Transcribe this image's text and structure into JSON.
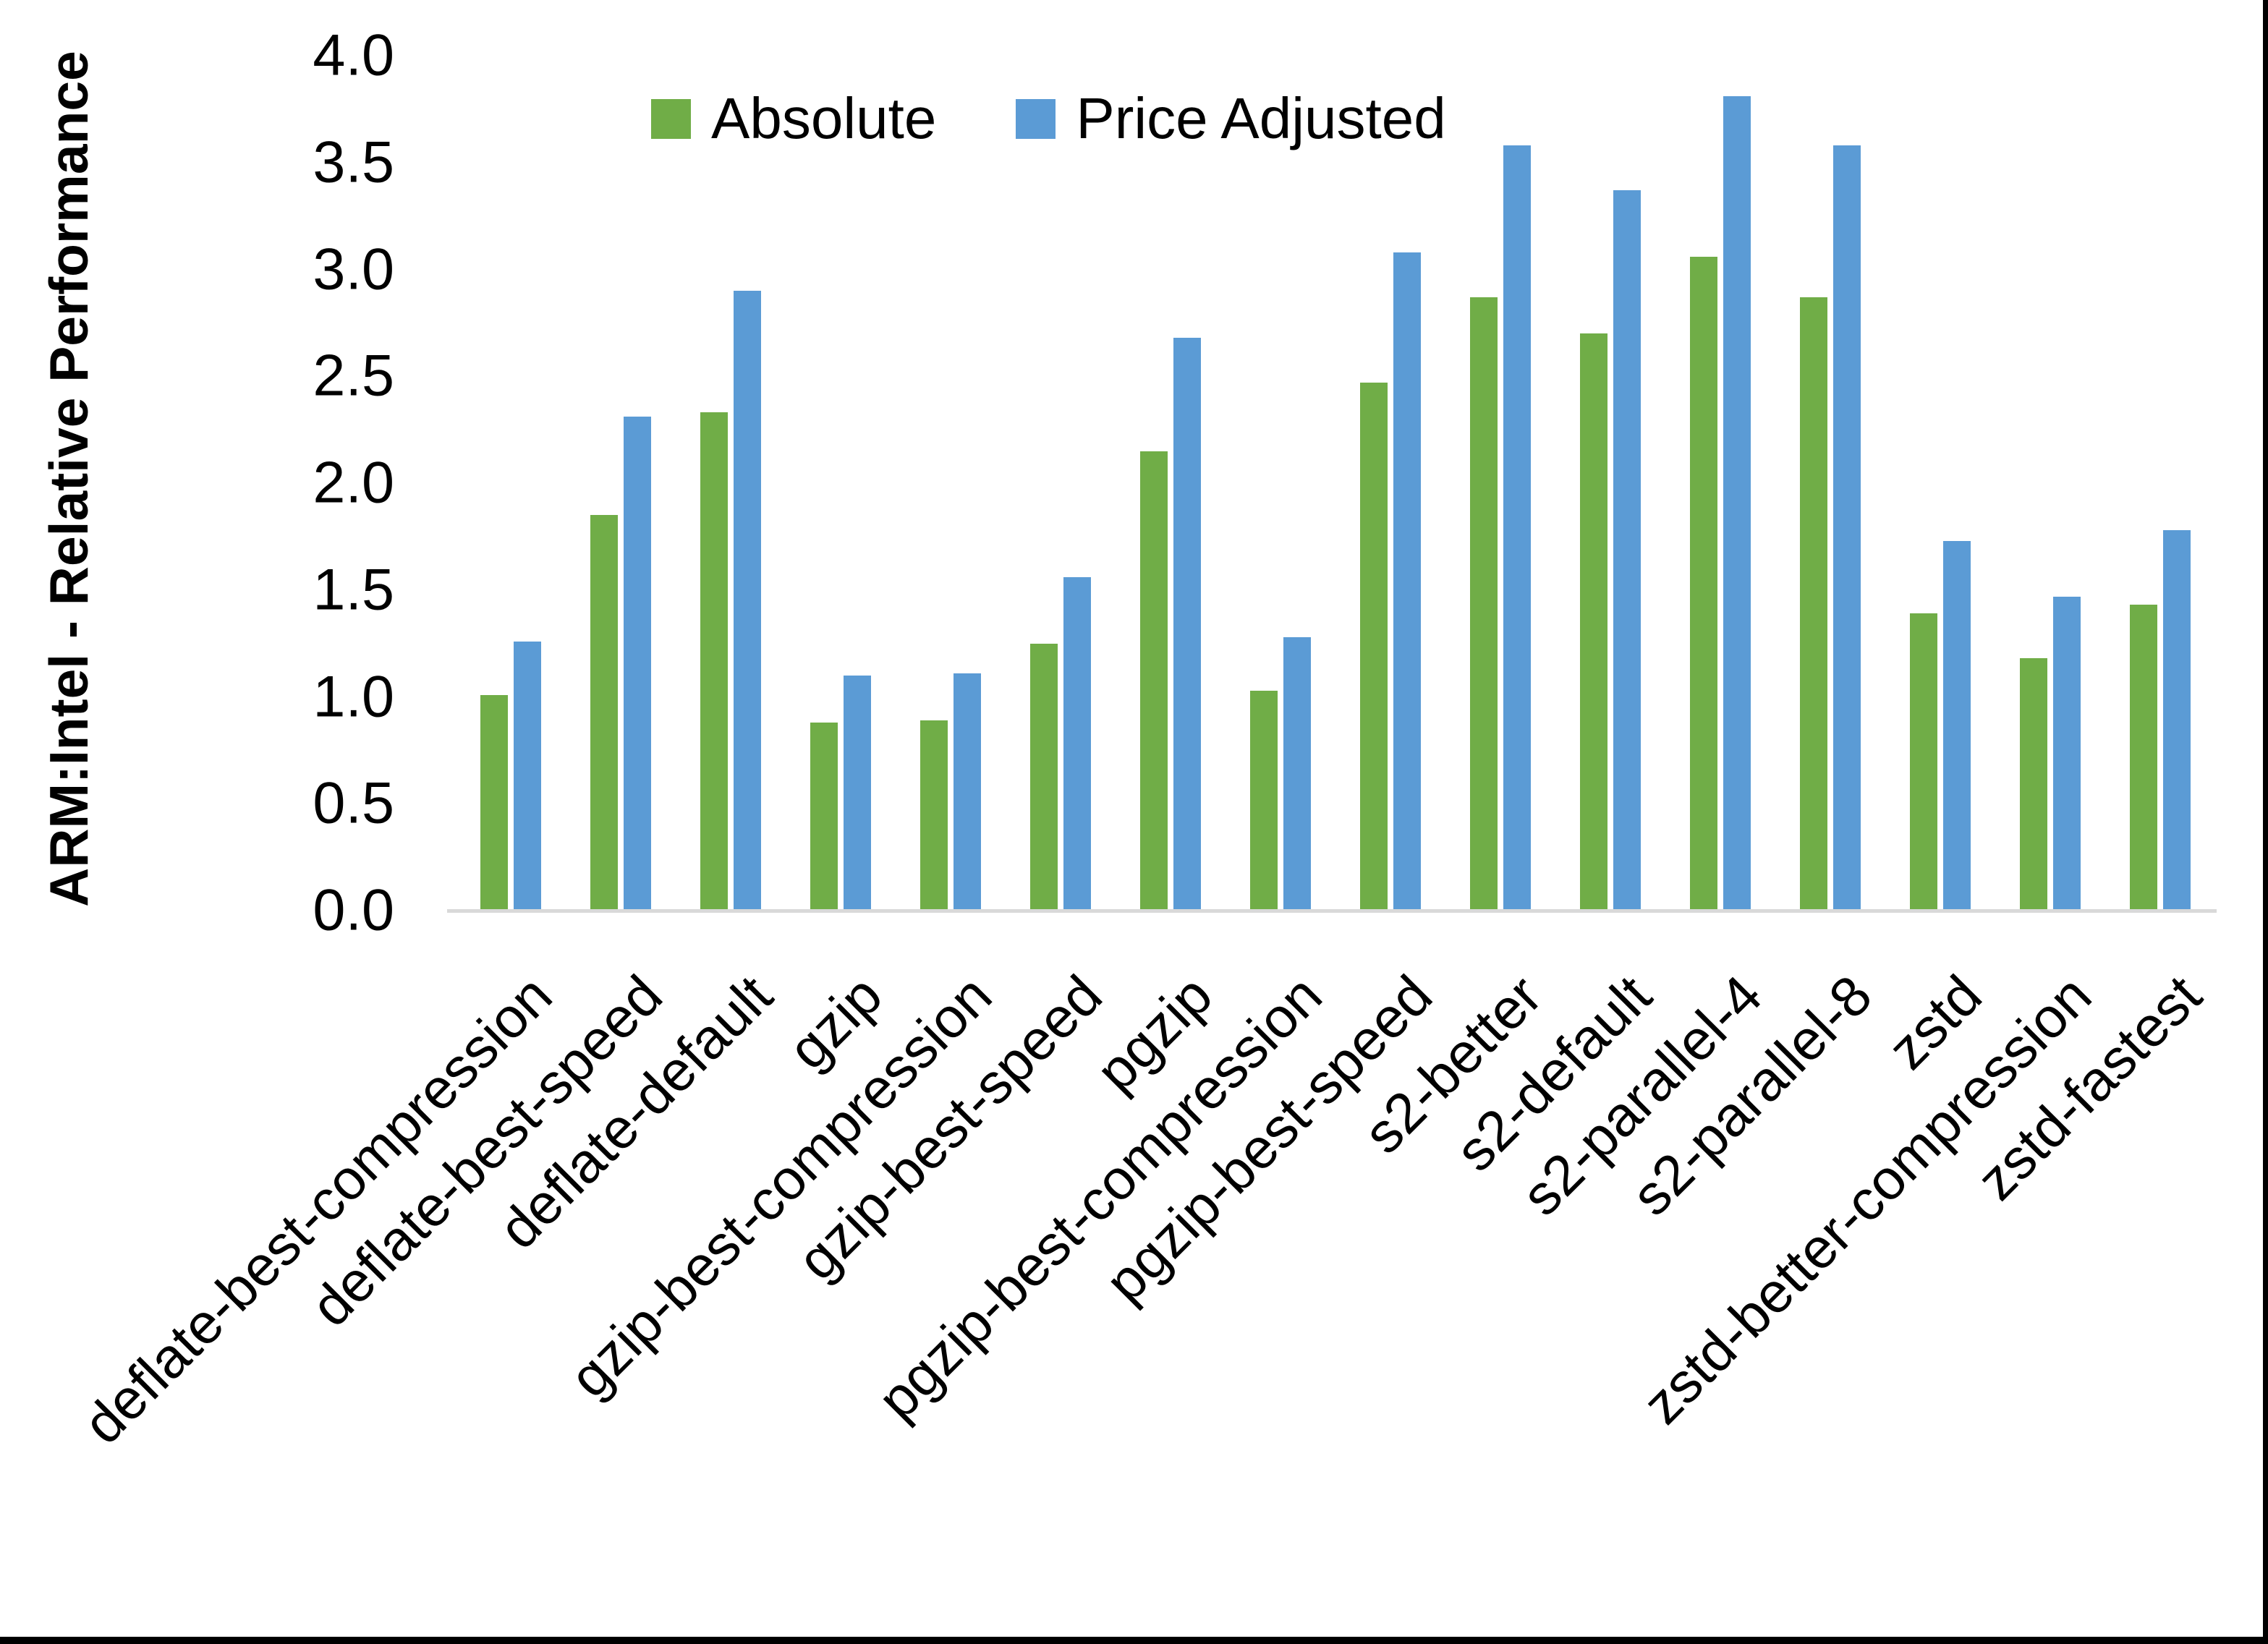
{
  "chart_data": {
    "type": "bar",
    "title": "",
    "xlabel": "",
    "ylabel": "ARM:Intel - Relative Performance",
    "ylim": [
      0.0,
      4.0
    ],
    "ytick_step": 0.5,
    "ytick_decimals": 1,
    "grid": false,
    "legend_position": "top-center",
    "categories": [
      "deflate-best-compression",
      "deflate-best-speed",
      "deflate-default",
      "gzip",
      "gzip-best-compression",
      "gzip-best-speed",
      "pgzip",
      "pgzip-best-compression",
      "pgzip-best-speed",
      "s2-better",
      "s2-default",
      "s2-parallel-4",
      "s2-parallel-8",
      "zstd",
      "zstd-better-compression",
      "zstd-fastest"
    ],
    "series": [
      {
        "name": "Absolute",
        "color": "#70AD47",
        "values": [
          1.01,
          1.85,
          2.33,
          0.88,
          0.89,
          1.25,
          2.15,
          1.03,
          2.47,
          2.87,
          2.7,
          3.06,
          2.87,
          1.39,
          1.18,
          1.43
        ]
      },
      {
        "name": "Price Adjusted",
        "color": "#5B9BD5",
        "values": [
          1.26,
          2.31,
          2.9,
          1.1,
          1.11,
          1.56,
          2.68,
          1.28,
          3.08,
          3.58,
          3.37,
          3.81,
          3.58,
          1.73,
          1.47,
          1.78
        ]
      }
    ]
  },
  "colors": {
    "background": "#FFFFFF",
    "axis_line": "#D9D9D9",
    "text": "#000000",
    "frame_border": "#000000"
  }
}
